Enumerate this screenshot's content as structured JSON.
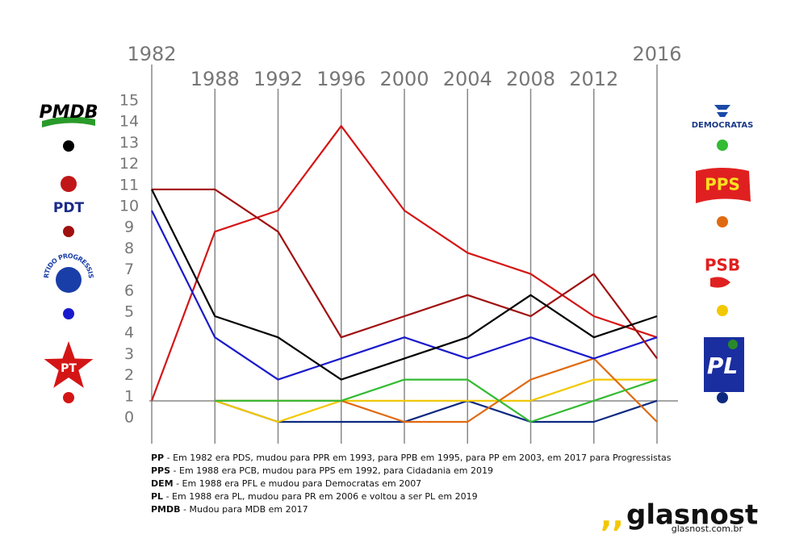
{
  "chart_data": {
    "type": "line",
    "categories": [
      "1982",
      "1988",
      "1992",
      "1996",
      "2000",
      "2004",
      "2008",
      "2012",
      "2016"
    ],
    "series": [
      {
        "name": "PMDB",
        "color": "#000000",
        "values": [
          11,
          5,
          4,
          2,
          3,
          4,
          6,
          4,
          5
        ]
      },
      {
        "name": "PDT",
        "color": "#a01010",
        "values": [
          11,
          11,
          9,
          4,
          5,
          6,
          5,
          7,
          3
        ]
      },
      {
        "name": "PARTIDO PROGRESSISTA",
        "color": "#1a1acc",
        "values": [
          10,
          4,
          2,
          3,
          4,
          3,
          4,
          3,
          4
        ]
      },
      {
        "name": "PT",
        "color": "#d41515",
        "values": [
          1,
          9,
          10,
          14,
          10,
          8,
          7,
          5,
          4
        ]
      },
      {
        "name": "DEMOCRATAS",
        "color": "#33bb33",
        "values": [
          null,
          1,
          1,
          1,
          2,
          2,
          0,
          1,
          2
        ]
      },
      {
        "name": "PPS",
        "color": "#e06a10",
        "values": [
          null,
          1,
          1,
          1,
          0,
          0,
          2,
          3,
          0
        ]
      },
      {
        "name": "PSB",
        "color": "#f2c800",
        "values": [
          null,
          1,
          0,
          1,
          1,
          1,
          1,
          2,
          2
        ]
      },
      {
        "name": "PL",
        "color": "#0d2a80",
        "values": [
          null,
          1,
          0,
          0,
          0,
          1,
          0,
          0,
          1
        ]
      }
    ],
    "ylim": [
      0,
      15
    ],
    "yticks": [
      0,
      1,
      2,
      3,
      4,
      5,
      6,
      7,
      8,
      9,
      10,
      11,
      12,
      13,
      14,
      15
    ],
    "notes": [
      {
        "party": "PP",
        "text": " - Em 1982 era PDS, mudou para PPR em 1993, para PPB em 1995, para PP em 2003, em 2017 para Progressistas"
      },
      {
        "party": "PPS",
        "text": " - Em 1988 era PCB, mudou para PPS em 1992, para Cidadania em 2019"
      },
      {
        "party": "DEM",
        "text": " - Em 1988 era PFL e mudou para Democratas em 2007"
      },
      {
        "party": "PL",
        "text": " - Em 1988 era PL, mudou para PR em 2006 e voltou a ser PL em 2019"
      },
      {
        "party": "PMDB",
        "text": " - Mudou para MDB em 2017"
      }
    ],
    "brand": "glasnost",
    "brand_url": "glasnost.com.br"
  }
}
